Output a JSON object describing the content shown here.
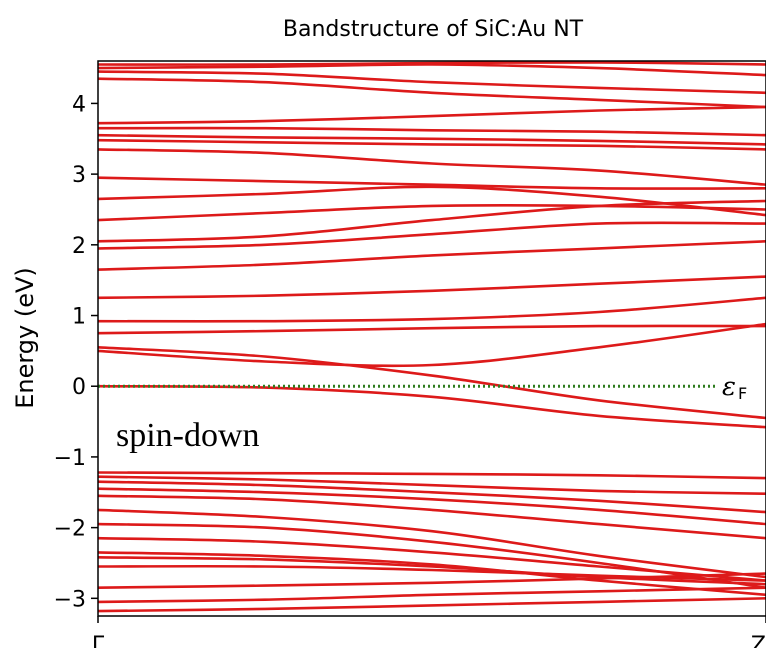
{
  "chart_data": {
    "type": "line",
    "title": "Bandstructure of SiC:Au NT",
    "xlabel": "",
    "ylabel": "Energy (eV)",
    "xlim": [
      0,
      1
    ],
    "ylim": [
      -3.25,
      4.6
    ],
    "x_ticks": [
      {
        "value": 0,
        "label": "Γ"
      },
      {
        "value": 1,
        "label": "Z"
      }
    ],
    "y_ticks": [
      -3,
      -2,
      -1,
      0,
      1,
      2,
      3,
      4
    ],
    "y_tick_labels": [
      "−3",
      "−2",
      "−1",
      "0",
      "1",
      "2",
      "3",
      "4"
    ],
    "fermi_level": {
      "value": 0,
      "label": "ε",
      "label_sub": "F",
      "color": "#2e7d1f"
    },
    "annotation": "spin-down",
    "line_color": "#dd1a1a",
    "x": [
      0,
      0.25,
      0.5,
      0.75,
      1
    ],
    "series": [
      {
        "values": [
          -3.18,
          -3.15,
          -3.1,
          -3.05,
          -3.0
        ]
      },
      {
        "values": [
          -3.05,
          -3.02,
          -2.95,
          -2.9,
          -2.85
        ]
      },
      {
        "values": [
          -2.85,
          -2.82,
          -2.78,
          -2.72,
          -2.65
        ]
      },
      {
        "values": [
          -2.55,
          -2.55,
          -2.6,
          -2.68,
          -2.75
        ]
      },
      {
        "values": [
          -2.42,
          -2.45,
          -2.55,
          -2.7,
          -2.8
        ]
      },
      {
        "values": [
          -2.35,
          -2.4,
          -2.52,
          -2.75,
          -2.95
        ]
      },
      {
        "values": [
          -2.15,
          -2.2,
          -2.35,
          -2.55,
          -2.75
        ]
      },
      {
        "values": [
          -1.95,
          -2.0,
          -2.2,
          -2.5,
          -2.85
        ]
      },
      {
        "values": [
          -1.75,
          -1.85,
          -2.05,
          -2.4,
          -2.7
        ]
      },
      {
        "values": [
          -1.55,
          -1.6,
          -1.75,
          -1.95,
          -2.15
        ]
      },
      {
        "values": [
          -1.45,
          -1.5,
          -1.6,
          -1.75,
          -1.95
        ]
      },
      {
        "values": [
          -1.35,
          -1.4,
          -1.5,
          -1.62,
          -1.78
        ]
      },
      {
        "values": [
          -1.28,
          -1.32,
          -1.4,
          -1.48,
          -1.52
        ]
      },
      {
        "values": [
          -1.22,
          -1.23,
          -1.24,
          -1.26,
          -1.3
        ]
      },
      {
        "values": [
          0.0,
          -0.02,
          -0.15,
          -0.42,
          -0.58
        ]
      },
      {
        "values": [
          0.55,
          0.42,
          0.15,
          -0.2,
          -0.45
        ]
      },
      {
        "values": [
          0.5,
          0.35,
          0.3,
          0.55,
          0.88
        ]
      },
      {
        "values": [
          0.75,
          0.78,
          0.82,
          0.85,
          0.85
        ]
      },
      {
        "values": [
          0.92,
          0.92,
          0.95,
          1.05,
          1.25
        ]
      },
      {
        "values": [
          1.25,
          1.28,
          1.35,
          1.45,
          1.55
        ]
      },
      {
        "values": [
          1.65,
          1.72,
          1.85,
          1.95,
          2.05
        ]
      },
      {
        "values": [
          1.95,
          2.0,
          2.15,
          2.3,
          2.3
        ]
      },
      {
        "values": [
          2.05,
          2.12,
          2.35,
          2.55,
          2.62
        ]
      },
      {
        "values": [
          2.35,
          2.45,
          2.55,
          2.55,
          2.5
        ]
      },
      {
        "values": [
          2.65,
          2.72,
          2.82,
          2.68,
          2.42
        ]
      },
      {
        "values": [
          2.95,
          2.9,
          2.85,
          2.8,
          2.8
        ]
      },
      {
        "values": [
          3.35,
          3.3,
          3.15,
          3.05,
          2.85
        ]
      },
      {
        "values": [
          3.48,
          3.45,
          3.42,
          3.4,
          3.35
        ]
      },
      {
        "values": [
          3.55,
          3.52,
          3.5,
          3.47,
          3.42
        ]
      },
      {
        "values": [
          3.65,
          3.65,
          3.62,
          3.6,
          3.55
        ]
      },
      {
        "values": [
          3.72,
          3.75,
          3.82,
          3.9,
          3.95
        ]
      },
      {
        "values": [
          4.35,
          4.3,
          4.15,
          4.05,
          3.95
        ]
      },
      {
        "values": [
          4.45,
          4.42,
          4.3,
          4.22,
          4.15
        ]
      },
      {
        "values": [
          4.5,
          4.52,
          4.55,
          4.5,
          4.4
        ]
      },
      {
        "values": [
          4.55,
          4.55,
          4.57,
          4.58,
          4.55
        ]
      }
    ]
  }
}
